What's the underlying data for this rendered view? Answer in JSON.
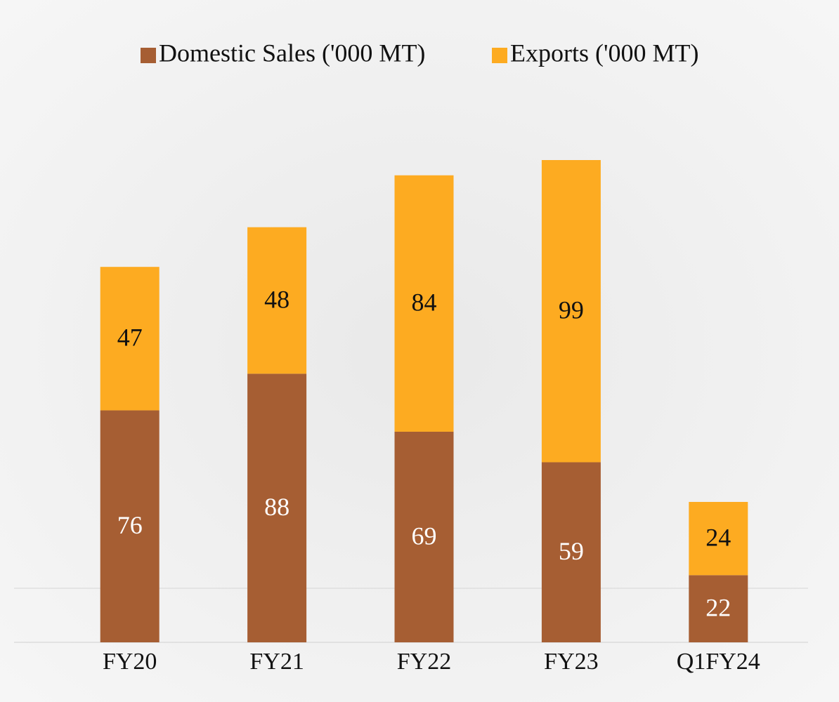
{
  "chart_data": {
    "type": "stacked-bar",
    "categories": [
      "FY20",
      "FY21",
      "FY22",
      "FY23",
      "Q1FY24"
    ],
    "series": [
      {
        "name": "Domestic Sales ('000 MT)",
        "color": "#a65e33",
        "values": [
          76,
          88,
          69,
          59,
          22
        ]
      },
      {
        "name": "Exports ('000 MT)",
        "color": "#fdab21",
        "values": [
          47,
          48,
          84,
          99,
          24
        ]
      }
    ],
    "legend": "top"
  }
}
